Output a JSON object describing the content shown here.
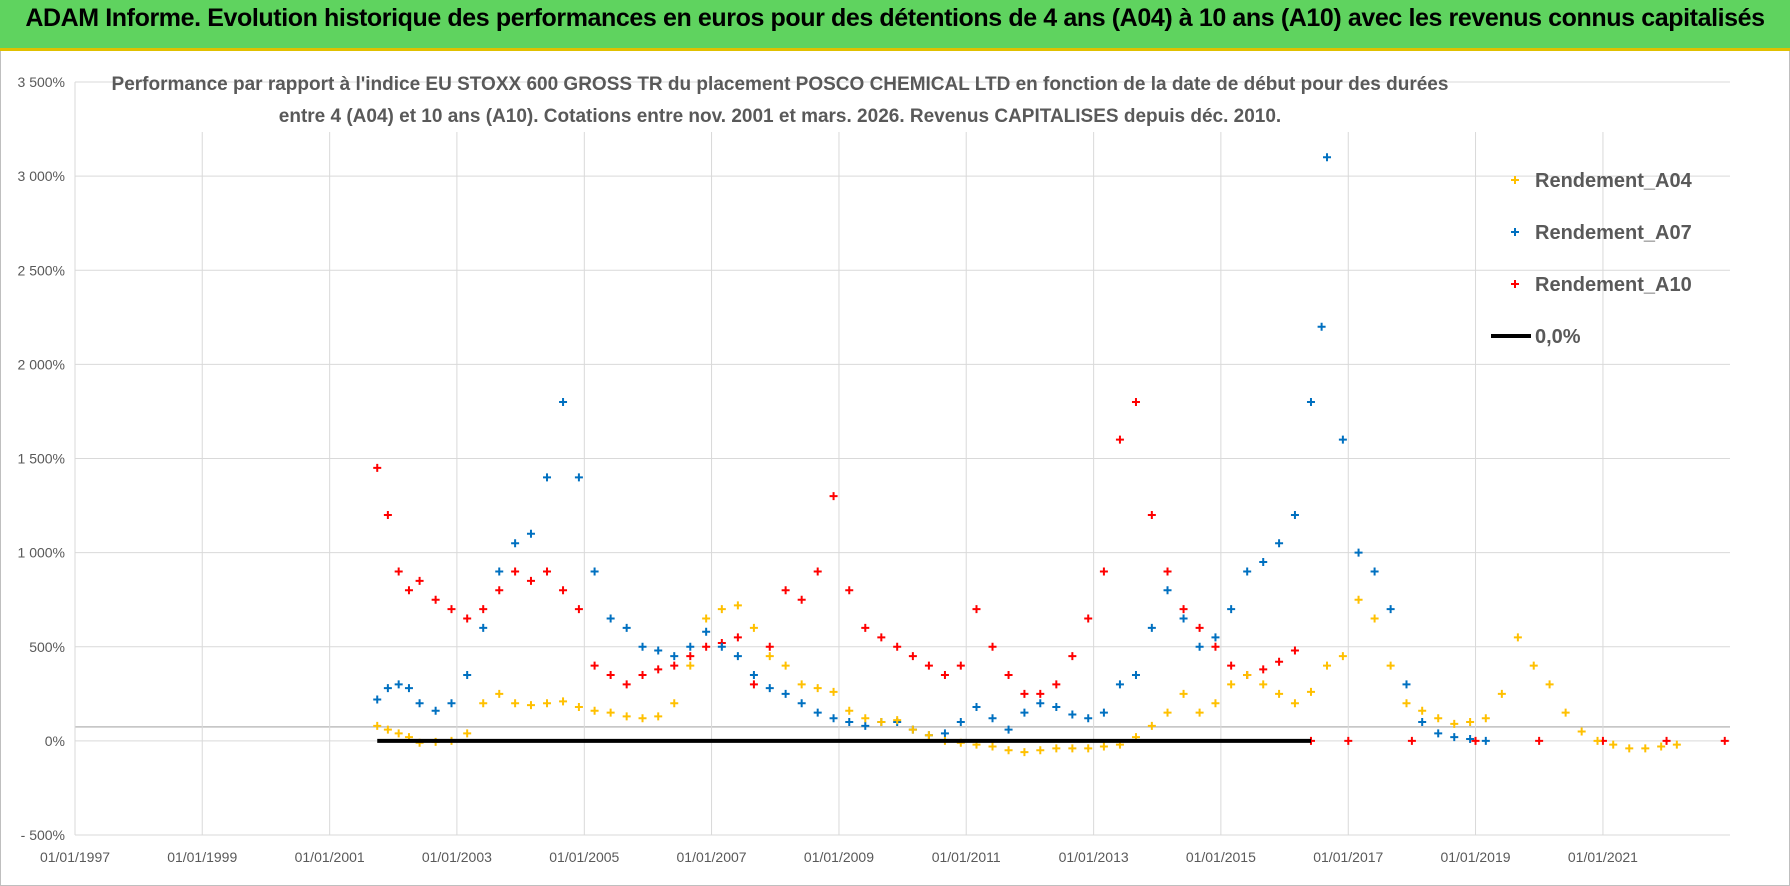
{
  "header": {
    "banner": "ADAM Informe. Evolution historique des performances en euros pour des détentions de 4 ans (A04) à 10 ans (A10) avec les revenus connus capitalisés"
  },
  "chart_data": {
    "type": "scatter",
    "title_lines": [
      "Performance par rapport à l'indice EU STOXX 600 GROSS TR  du placement POSCO CHEMICAL LTD en fonction de la date de début pour des durées",
      "entre 4 (A04) et 10 ans (A10).  Cotations entre nov. 2001 et mars. 2026.  Revenus CAPITALISES depuis déc. 2010."
    ],
    "x_axis": {
      "type": "date",
      "min": "1997-01-01",
      "max": "2022-12-31",
      "tick_labels": [
        "01/01/1997",
        "01/01/1999",
        "01/01/2001",
        "01/01/2003",
        "01/01/2005",
        "01/01/2007",
        "01/01/2009",
        "01/01/2011",
        "01/01/2013",
        "01/01/2015",
        "01/01/2017",
        "01/01/2019",
        "01/01/2021"
      ]
    },
    "y_axis": {
      "min": -500,
      "max": 3500,
      "step": 500,
      "unit": "%",
      "tick_labels": [
        "3 500%",
        "3 000%",
        "2 500%",
        "2 000%",
        "1 500%",
        "1 000%",
        "500%",
        "0%",
        "- 500%"
      ]
    },
    "grid": true,
    "legend_position": "top-right",
    "legend": [
      "Rendement_A04",
      "Rendement_A07",
      "Rendement_A10",
      "0,0%"
    ],
    "series": [
      {
        "name": "Rendement_A04",
        "color": "#ffc000",
        "marker": "+",
        "points": [
          [
            "2001-10-01",
            80
          ],
          [
            "2001-12-01",
            60
          ],
          [
            "2002-02-01",
            40
          ],
          [
            "2002-04-01",
            20
          ],
          [
            "2002-06-01",
            -10
          ],
          [
            "2002-09-01",
            -5
          ],
          [
            "2002-12-01",
            0
          ],
          [
            "2003-03-01",
            40
          ],
          [
            "2003-06-01",
            200
          ],
          [
            "2003-09-01",
            250
          ],
          [
            "2003-12-01",
            200
          ],
          [
            "2004-03-01",
            190
          ],
          [
            "2004-06-01",
            200
          ],
          [
            "2004-09-01",
            210
          ],
          [
            "2004-12-01",
            180
          ],
          [
            "2005-03-01",
            160
          ],
          [
            "2005-06-01",
            150
          ],
          [
            "2005-09-01",
            130
          ],
          [
            "2005-12-01",
            120
          ],
          [
            "2006-03-01",
            130
          ],
          [
            "2006-06-01",
            200
          ],
          [
            "2006-09-01",
            400
          ],
          [
            "2006-12-01",
            650
          ],
          [
            "2007-03-01",
            700
          ],
          [
            "2007-06-01",
            720
          ],
          [
            "2007-09-01",
            600
          ],
          [
            "2007-12-01",
            450
          ],
          [
            "2008-03-01",
            400
          ],
          [
            "2008-06-01",
            300
          ],
          [
            "2008-09-01",
            280
          ],
          [
            "2008-12-01",
            260
          ],
          [
            "2009-03-01",
            160
          ],
          [
            "2009-06-01",
            120
          ],
          [
            "2009-09-01",
            100
          ],
          [
            "2009-12-01",
            110
          ],
          [
            "2010-03-01",
            60
          ],
          [
            "2010-06-01",
            30
          ],
          [
            "2010-09-01",
            0
          ],
          [
            "2010-12-01",
            -10
          ],
          [
            "2011-03-01",
            -20
          ],
          [
            "2011-06-01",
            -30
          ],
          [
            "2011-09-01",
            -50
          ],
          [
            "2011-12-01",
            -60
          ],
          [
            "2012-03-01",
            -50
          ],
          [
            "2012-06-01",
            -40
          ],
          [
            "2012-09-01",
            -40
          ],
          [
            "2012-12-01",
            -40
          ],
          [
            "2013-03-01",
            -30
          ],
          [
            "2013-06-01",
            -20
          ],
          [
            "2013-09-01",
            20
          ],
          [
            "2013-12-01",
            80
          ],
          [
            "2014-03-01",
            150
          ],
          [
            "2014-06-01",
            250
          ],
          [
            "2014-09-01",
            150
          ],
          [
            "2014-12-01",
            200
          ],
          [
            "2015-03-01",
            300
          ],
          [
            "2015-06-01",
            350
          ],
          [
            "2015-09-01",
            300
          ],
          [
            "2015-12-01",
            250
          ],
          [
            "2016-03-01",
            200
          ],
          [
            "2016-06-01",
            260
          ],
          [
            "2016-09-01",
            400
          ],
          [
            "2016-12-01",
            450
          ],
          [
            "2017-03-01",
            750
          ],
          [
            "2017-06-01",
            650
          ],
          [
            "2017-09-01",
            400
          ],
          [
            "2017-12-01",
            200
          ],
          [
            "2018-03-01",
            160
          ],
          [
            "2018-06-01",
            120
          ],
          [
            "2018-09-01",
            90
          ],
          [
            "2018-12-01",
            100
          ],
          [
            "2019-03-01",
            120
          ],
          [
            "2019-06-01",
            250
          ],
          [
            "2019-09-01",
            550
          ],
          [
            "2019-12-01",
            400
          ],
          [
            "2020-03-01",
            300
          ],
          [
            "2020-06-01",
            150
          ],
          [
            "2020-09-01",
            50
          ],
          [
            "2020-12-01",
            0
          ],
          [
            "2021-03-01",
            -20
          ],
          [
            "2021-06-01",
            -40
          ],
          [
            "2021-09-01",
            -40
          ],
          [
            "2021-12-01",
            -30
          ],
          [
            "2022-03-01",
            -20
          ]
        ]
      },
      {
        "name": "Rendement_A07",
        "color": "#0070c0",
        "marker": "+",
        "points": [
          [
            "2001-10-01",
            220
          ],
          [
            "2001-12-01",
            280
          ],
          [
            "2002-02-01",
            300
          ],
          [
            "2002-04-01",
            280
          ],
          [
            "2002-06-01",
            200
          ],
          [
            "2002-09-01",
            160
          ],
          [
            "2002-12-01",
            200
          ],
          [
            "2003-03-01",
            350
          ],
          [
            "2003-06-01",
            600
          ],
          [
            "2003-09-01",
            900
          ],
          [
            "2003-12-01",
            1050
          ],
          [
            "2004-03-01",
            1100
          ],
          [
            "2004-06-01",
            1400
          ],
          [
            "2004-09-01",
            1800
          ],
          [
            "2004-12-01",
            1400
          ],
          [
            "2005-03-01",
            900
          ],
          [
            "2005-06-01",
            650
          ],
          [
            "2005-09-01",
            600
          ],
          [
            "2005-12-01",
            500
          ],
          [
            "2006-03-01",
            480
          ],
          [
            "2006-06-01",
            450
          ],
          [
            "2006-09-01",
            500
          ],
          [
            "2006-12-01",
            580
          ],
          [
            "2007-03-01",
            500
          ],
          [
            "2007-06-01",
            450
          ],
          [
            "2007-09-01",
            350
          ],
          [
            "2007-12-01",
            280
          ],
          [
            "2008-03-01",
            250
          ],
          [
            "2008-06-01",
            200
          ],
          [
            "2008-09-01",
            150
          ],
          [
            "2008-12-01",
            120
          ],
          [
            "2009-03-01",
            100
          ],
          [
            "2009-06-01",
            80
          ],
          [
            "2009-09-01",
            100
          ],
          [
            "2009-12-01",
            100
          ],
          [
            "2010-03-01",
            60
          ],
          [
            "2010-06-01",
            30
          ],
          [
            "2010-09-01",
            40
          ],
          [
            "2010-12-01",
            100
          ],
          [
            "2011-03-01",
            180
          ],
          [
            "2011-06-01",
            120
          ],
          [
            "2011-09-01",
            60
          ],
          [
            "2011-12-01",
            150
          ],
          [
            "2012-03-01",
            200
          ],
          [
            "2012-06-01",
            180
          ],
          [
            "2012-09-01",
            140
          ],
          [
            "2012-12-01",
            120
          ],
          [
            "2013-03-01",
            150
          ],
          [
            "2013-06-01",
            300
          ],
          [
            "2013-09-01",
            350
          ],
          [
            "2013-12-01",
            600
          ],
          [
            "2014-03-01",
            800
          ],
          [
            "2014-06-01",
            650
          ],
          [
            "2014-09-01",
            500
          ],
          [
            "2014-12-01",
            550
          ],
          [
            "2015-03-01",
            700
          ],
          [
            "2015-06-01",
            900
          ],
          [
            "2015-09-01",
            950
          ],
          [
            "2015-12-01",
            1050
          ],
          [
            "2016-03-01",
            1200
          ],
          [
            "2016-06-01",
            1800
          ],
          [
            "2016-08-01",
            2200
          ],
          [
            "2016-09-01",
            3100
          ],
          [
            "2016-12-01",
            1600
          ],
          [
            "2017-03-01",
            1000
          ],
          [
            "2017-06-01",
            900
          ],
          [
            "2017-09-01",
            700
          ],
          [
            "2017-12-01",
            300
          ],
          [
            "2018-03-01",
            100
          ],
          [
            "2018-06-01",
            40
          ],
          [
            "2018-09-01",
            20
          ],
          [
            "2018-12-01",
            10
          ],
          [
            "2019-03-01",
            0
          ]
        ]
      },
      {
        "name": "Rendement_A10",
        "color": "#ff0000",
        "marker": "+",
        "points": [
          [
            "2001-10-01",
            1450
          ],
          [
            "2001-12-01",
            1200
          ],
          [
            "2002-02-01",
            900
          ],
          [
            "2002-04-01",
            800
          ],
          [
            "2002-06-01",
            850
          ],
          [
            "2002-09-01",
            750
          ],
          [
            "2002-12-01",
            700
          ],
          [
            "2003-03-01",
            650
          ],
          [
            "2003-06-01",
            700
          ],
          [
            "2003-09-01",
            800
          ],
          [
            "2003-12-01",
            900
          ],
          [
            "2004-03-01",
            850
          ],
          [
            "2004-06-01",
            900
          ],
          [
            "2004-09-01",
            800
          ],
          [
            "2004-12-01",
            700
          ],
          [
            "2005-03-01",
            400
          ],
          [
            "2005-06-01",
            350
          ],
          [
            "2005-09-01",
            300
          ],
          [
            "2005-12-01",
            350
          ],
          [
            "2006-03-01",
            380
          ],
          [
            "2006-06-01",
            400
          ],
          [
            "2006-09-01",
            450
          ],
          [
            "2006-12-01",
            500
          ],
          [
            "2007-03-01",
            520
          ],
          [
            "2007-06-01",
            550
          ],
          [
            "2007-09-01",
            300
          ],
          [
            "2007-12-01",
            500
          ],
          [
            "2008-03-01",
            800
          ],
          [
            "2008-06-01",
            750
          ],
          [
            "2008-09-01",
            900
          ],
          [
            "2008-12-01",
            1300
          ],
          [
            "2009-03-01",
            800
          ],
          [
            "2009-06-01",
            600
          ],
          [
            "2009-09-01",
            550
          ],
          [
            "2009-12-01",
            500
          ],
          [
            "2010-03-01",
            450
          ],
          [
            "2010-06-01",
            400
          ],
          [
            "2010-09-01",
            350
          ],
          [
            "2010-12-01",
            400
          ],
          [
            "2011-03-01",
            700
          ],
          [
            "2011-06-01",
            500
          ],
          [
            "2011-09-01",
            350
          ],
          [
            "2011-12-01",
            250
          ],
          [
            "2012-03-01",
            250
          ],
          [
            "2012-06-01",
            300
          ],
          [
            "2012-09-01",
            450
          ],
          [
            "2012-12-01",
            650
          ],
          [
            "2013-03-01",
            900
          ],
          [
            "2013-06-01",
            1600
          ],
          [
            "2013-09-01",
            1800
          ],
          [
            "2013-12-01",
            1200
          ],
          [
            "2014-03-01",
            900
          ],
          [
            "2014-06-01",
            700
          ],
          [
            "2014-09-01",
            600
          ],
          [
            "2014-12-01",
            500
          ],
          [
            "2015-03-01",
            400
          ],
          [
            "2015-06-01",
            350
          ],
          [
            "2015-09-01",
            380
          ],
          [
            "2015-12-01",
            420
          ],
          [
            "2016-03-01",
            480
          ],
          [
            "2016-06-01",
            0
          ],
          [
            "2017-01-01",
            0
          ],
          [
            "2018-01-01",
            0
          ],
          [
            "2019-01-01",
            0
          ],
          [
            "2020-01-01",
            0
          ],
          [
            "2021-01-01",
            0
          ],
          [
            "2022-01-01",
            0
          ],
          [
            "2022-12-01",
            0
          ]
        ]
      },
      {
        "name": "0,0%",
        "color": "#000000",
        "marker": "line",
        "points": [
          [
            "2001-10-01",
            0
          ],
          [
            "2016-06-01",
            0
          ]
        ]
      }
    ]
  }
}
